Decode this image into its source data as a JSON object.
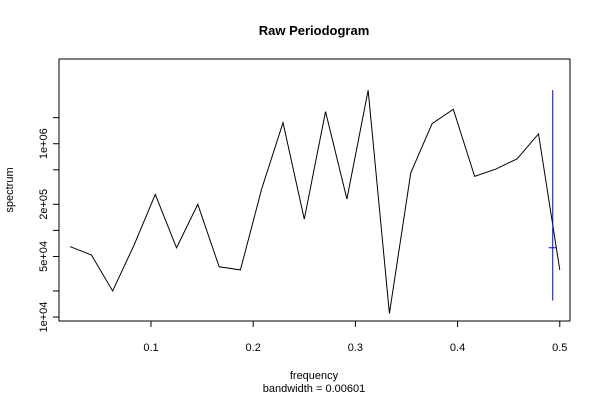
{
  "chart_data": {
    "type": "line",
    "title": "Raw Periodogram",
    "xlabel": "frequency",
    "sublabel": "bandwidth = 0.00601",
    "ylabel": "spectrum",
    "y_scale": "log",
    "xlim": [
      0.01,
      0.51
    ],
    "ylim": [
      9000,
      9500000
    ],
    "x_ticks": [
      {
        "value": 0.1,
        "label": "0.1"
      },
      {
        "value": 0.2,
        "label": "0.2"
      },
      {
        "value": 0.3,
        "label": "0.3"
      },
      {
        "value": 0.4,
        "label": "0.4"
      },
      {
        "value": 0.5,
        "label": "0.5"
      }
    ],
    "y_ticks": [
      {
        "value": 10000,
        "label": "1e+04"
      },
      {
        "value": 50000,
        "label": "5e+04"
      },
      {
        "value": 200000,
        "label": "2e+05"
      },
      {
        "value": 1000000,
        "label": "1e+06"
      }
    ],
    "y_minor_ticks": [
      20000,
      100000,
      500000,
      2000000
    ],
    "series": [
      {
        "color": "#000000",
        "x": [
          0.0208,
          0.0417,
          0.0625,
          0.0833,
          0.1042,
          0.125,
          0.1458,
          0.1667,
          0.1875,
          0.2083,
          0.2292,
          0.25,
          0.2708,
          0.2917,
          0.3125,
          0.3333,
          0.3542,
          0.375,
          0.3958,
          0.4167,
          0.4375,
          0.4583,
          0.4792,
          0.5
        ],
        "y": [
          65000,
          52000,
          20000,
          67000,
          260000,
          63000,
          200000,
          38000,
          35000,
          300000,
          1750000,
          135000,
          2350000,
          230000,
          4150000,
          11000,
          460000,
          1700000,
          2500000,
          420000,
          510000,
          670000,
          1300000,
          35000
        ]
      }
    ],
    "ci_bar": {
      "color": "#0000ff",
      "x": 0.4931,
      "center": 63000,
      "lower": 15500,
      "upper": 4150000
    }
  }
}
